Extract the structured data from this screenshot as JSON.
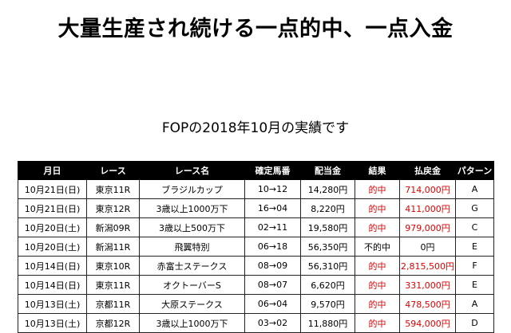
{
  "headline": "大量生産され続ける一点的中、一点入金",
  "subtitle": "FOPの2018年10月の実績です",
  "table": {
    "headers": [
      "月日",
      "レース",
      "レース名",
      "確定馬番",
      "配当金",
      "結果",
      "払戻金",
      "パターン"
    ],
    "rows": [
      {
        "date": "10月21日(日)",
        "race": "東京11R",
        "name": "ブラジルカップ",
        "numbers": "10→12",
        "dividend": "14,280円",
        "result": "的中",
        "payout": "714,000円",
        "pattern": "A",
        "hit": true
      },
      {
        "date": "10月21日(日)",
        "race": "東京12R",
        "name": "3歳以上1000万下",
        "numbers": "16→04",
        "dividend": "8,220円",
        "result": "的中",
        "payout": "411,000円",
        "pattern": "G",
        "hit": true
      },
      {
        "date": "10月20日(土)",
        "race": "新潟09R",
        "name": "3歳以上500万下",
        "numbers": "02→11",
        "dividend": "19,580円",
        "result": "的中",
        "payout": "979,000円",
        "pattern": "C",
        "hit": true
      },
      {
        "date": "10月20日(土)",
        "race": "新潟11R",
        "name": "飛翼特別",
        "numbers": "06→18",
        "dividend": "56,350円",
        "result": "不的中",
        "payout": "0円",
        "pattern": "E",
        "hit": false
      },
      {
        "date": "10月14日(日)",
        "race": "東京10R",
        "name": "赤富士ステークス",
        "numbers": "08→09",
        "dividend": "56,310円",
        "result": "的中",
        "payout": "2,815,500円",
        "pattern": "F",
        "hit": true
      },
      {
        "date": "10月14日(日)",
        "race": "東京11R",
        "name": "オクトーバーS",
        "numbers": "08→07",
        "dividend": "6,620円",
        "result": "的中",
        "payout": "331,000円",
        "pattern": "E",
        "hit": true
      },
      {
        "date": "10月13日(土)",
        "race": "京都11R",
        "name": "大原ステークス",
        "numbers": "06→04",
        "dividend": "9,570円",
        "result": "的中",
        "payout": "478,500円",
        "pattern": "A",
        "hit": true
      },
      {
        "date": "10月13日(土)",
        "race": "京都12R",
        "name": "3歳以上1000万下",
        "numbers": "03→02",
        "dividend": "11,880円",
        "result": "的中",
        "payout": "594,000円",
        "pattern": "D",
        "hit": true
      }
    ]
  },
  "colors": {
    "header_bg": "#000000",
    "hit": "#e00000"
  }
}
